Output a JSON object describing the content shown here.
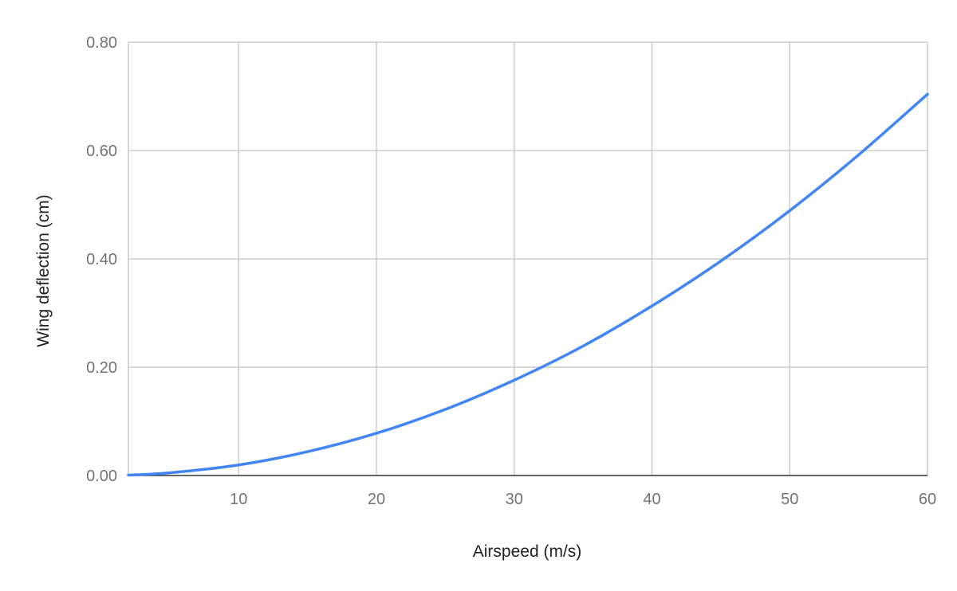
{
  "chart_data": {
    "type": "line",
    "title": "",
    "xlabel": "Airspeed (m/s)",
    "ylabel": "Wing deflection (cm)",
    "xlim": [
      2,
      60
    ],
    "ylim": [
      0,
      0.8
    ],
    "x_ticks": [
      10,
      20,
      30,
      40,
      50,
      60
    ],
    "x_tick_labels": [
      "10",
      "20",
      "30",
      "40",
      "50",
      "60"
    ],
    "y_ticks": [
      0,
      0.2,
      0.4,
      0.6,
      0.8
    ],
    "y_tick_labels": [
      "0.00",
      "0.20",
      "0.40",
      "0.60",
      "0.80"
    ],
    "grid": true,
    "legend": "none",
    "series": [
      {
        "color": "#4285f4",
        "x": [
          2,
          5,
          10,
          15,
          20,
          25,
          30,
          35,
          40,
          45,
          50,
          55,
          60
        ],
        "y": [
          0.0008,
          0.005,
          0.0195,
          0.044,
          0.078,
          0.122,
          0.176,
          0.239,
          0.313,
          0.396,
          0.489,
          0.592,
          0.704
        ]
      }
    ]
  }
}
